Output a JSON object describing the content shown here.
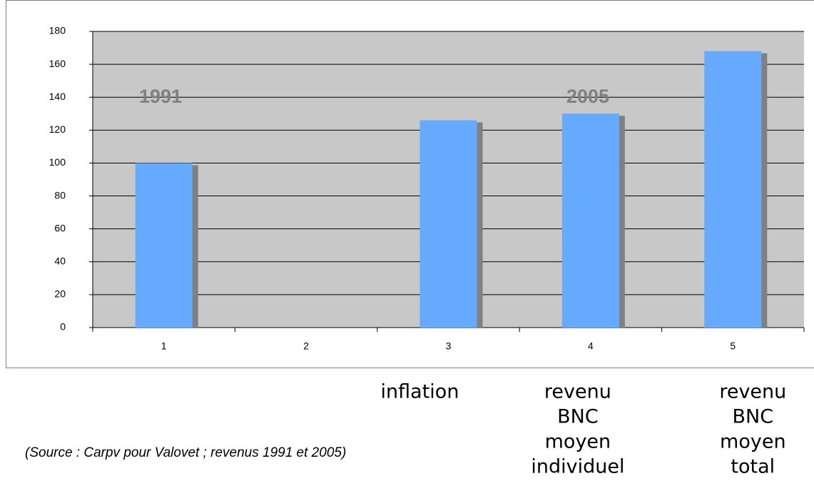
{
  "chart_data": {
    "type": "bar",
    "categories": [
      "1",
      "2",
      "3",
      "4",
      "5"
    ],
    "values": [
      100,
      null,
      126,
      130,
      168
    ],
    "color": "#66aaff",
    "shadow_color": "#808080",
    "background": "#c8c8c8",
    "ylim": [
      0,
      180
    ],
    "yticks": [
      0,
      20,
      40,
      60,
      80,
      100,
      120,
      140,
      160,
      180
    ],
    "grid": true,
    "annotations": [
      "1991",
      "2005"
    ],
    "category_descriptions": [
      null,
      null,
      [
        "inflation"
      ],
      [
        "revenu",
        "BNC",
        "moyen",
        "individuel"
      ],
      [
        "revenu",
        "BNC",
        "moyen",
        "total"
      ]
    ],
    "source": "(Source : Carpv pour Valovet ; revenus 1991 et 2005)"
  }
}
